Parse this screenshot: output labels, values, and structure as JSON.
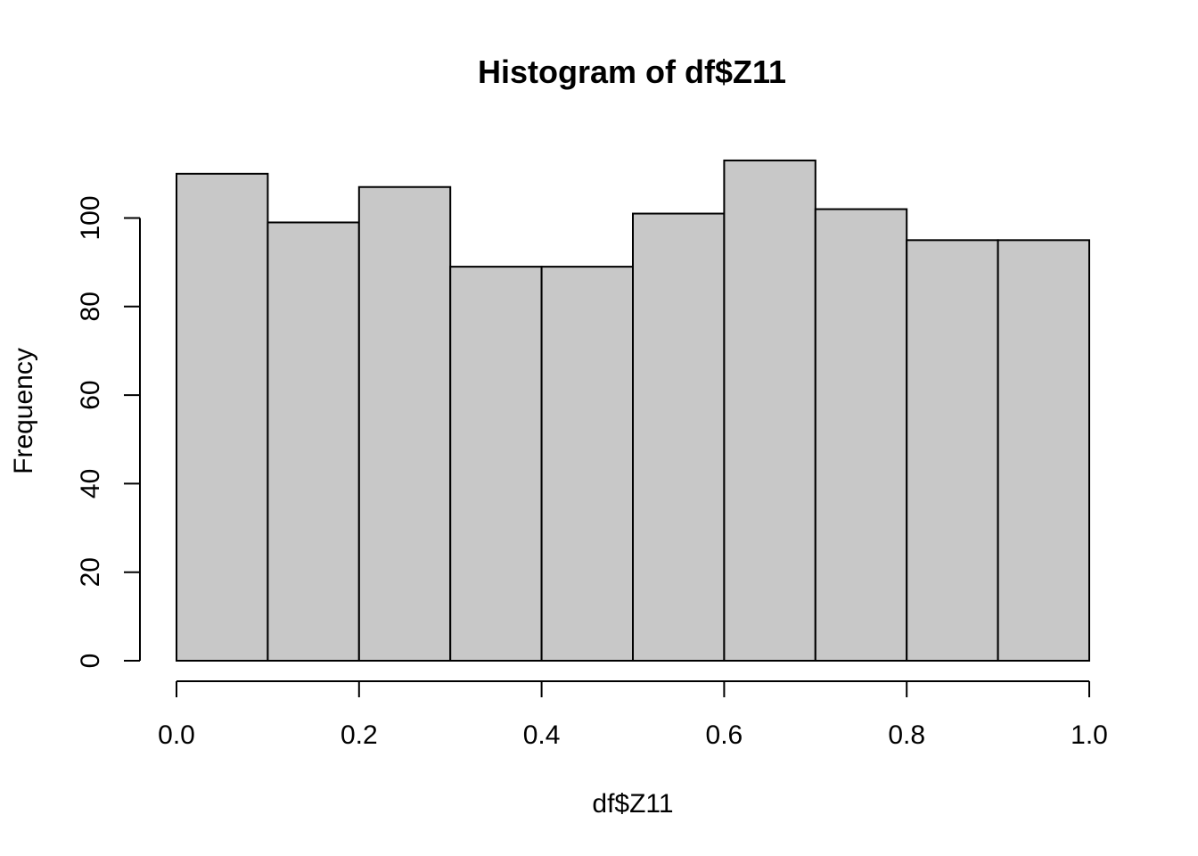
{
  "chart_data": {
    "type": "bar",
    "title": "Histogram of df$Z11",
    "xlabel": "df$Z11",
    "ylabel": "Frequency",
    "bin_edges": [
      0.0,
      0.1,
      0.2,
      0.3,
      0.4,
      0.5,
      0.6,
      0.7,
      0.8,
      0.9,
      1.0
    ],
    "values": [
      110,
      99,
      107,
      89,
      89,
      101,
      113,
      102,
      95,
      95
    ],
    "xlim": [
      0.0,
      1.0
    ],
    "ylim": [
      0,
      113
    ],
    "x_ticks": [
      "0.0",
      "0.2",
      "0.4",
      "0.6",
      "0.8",
      "1.0"
    ],
    "y_ticks": [
      "0",
      "20",
      "40",
      "60",
      "80",
      "100"
    ],
    "grid": false,
    "bar_color": "#c8c8c8",
    "edge_color": "#000000"
  }
}
